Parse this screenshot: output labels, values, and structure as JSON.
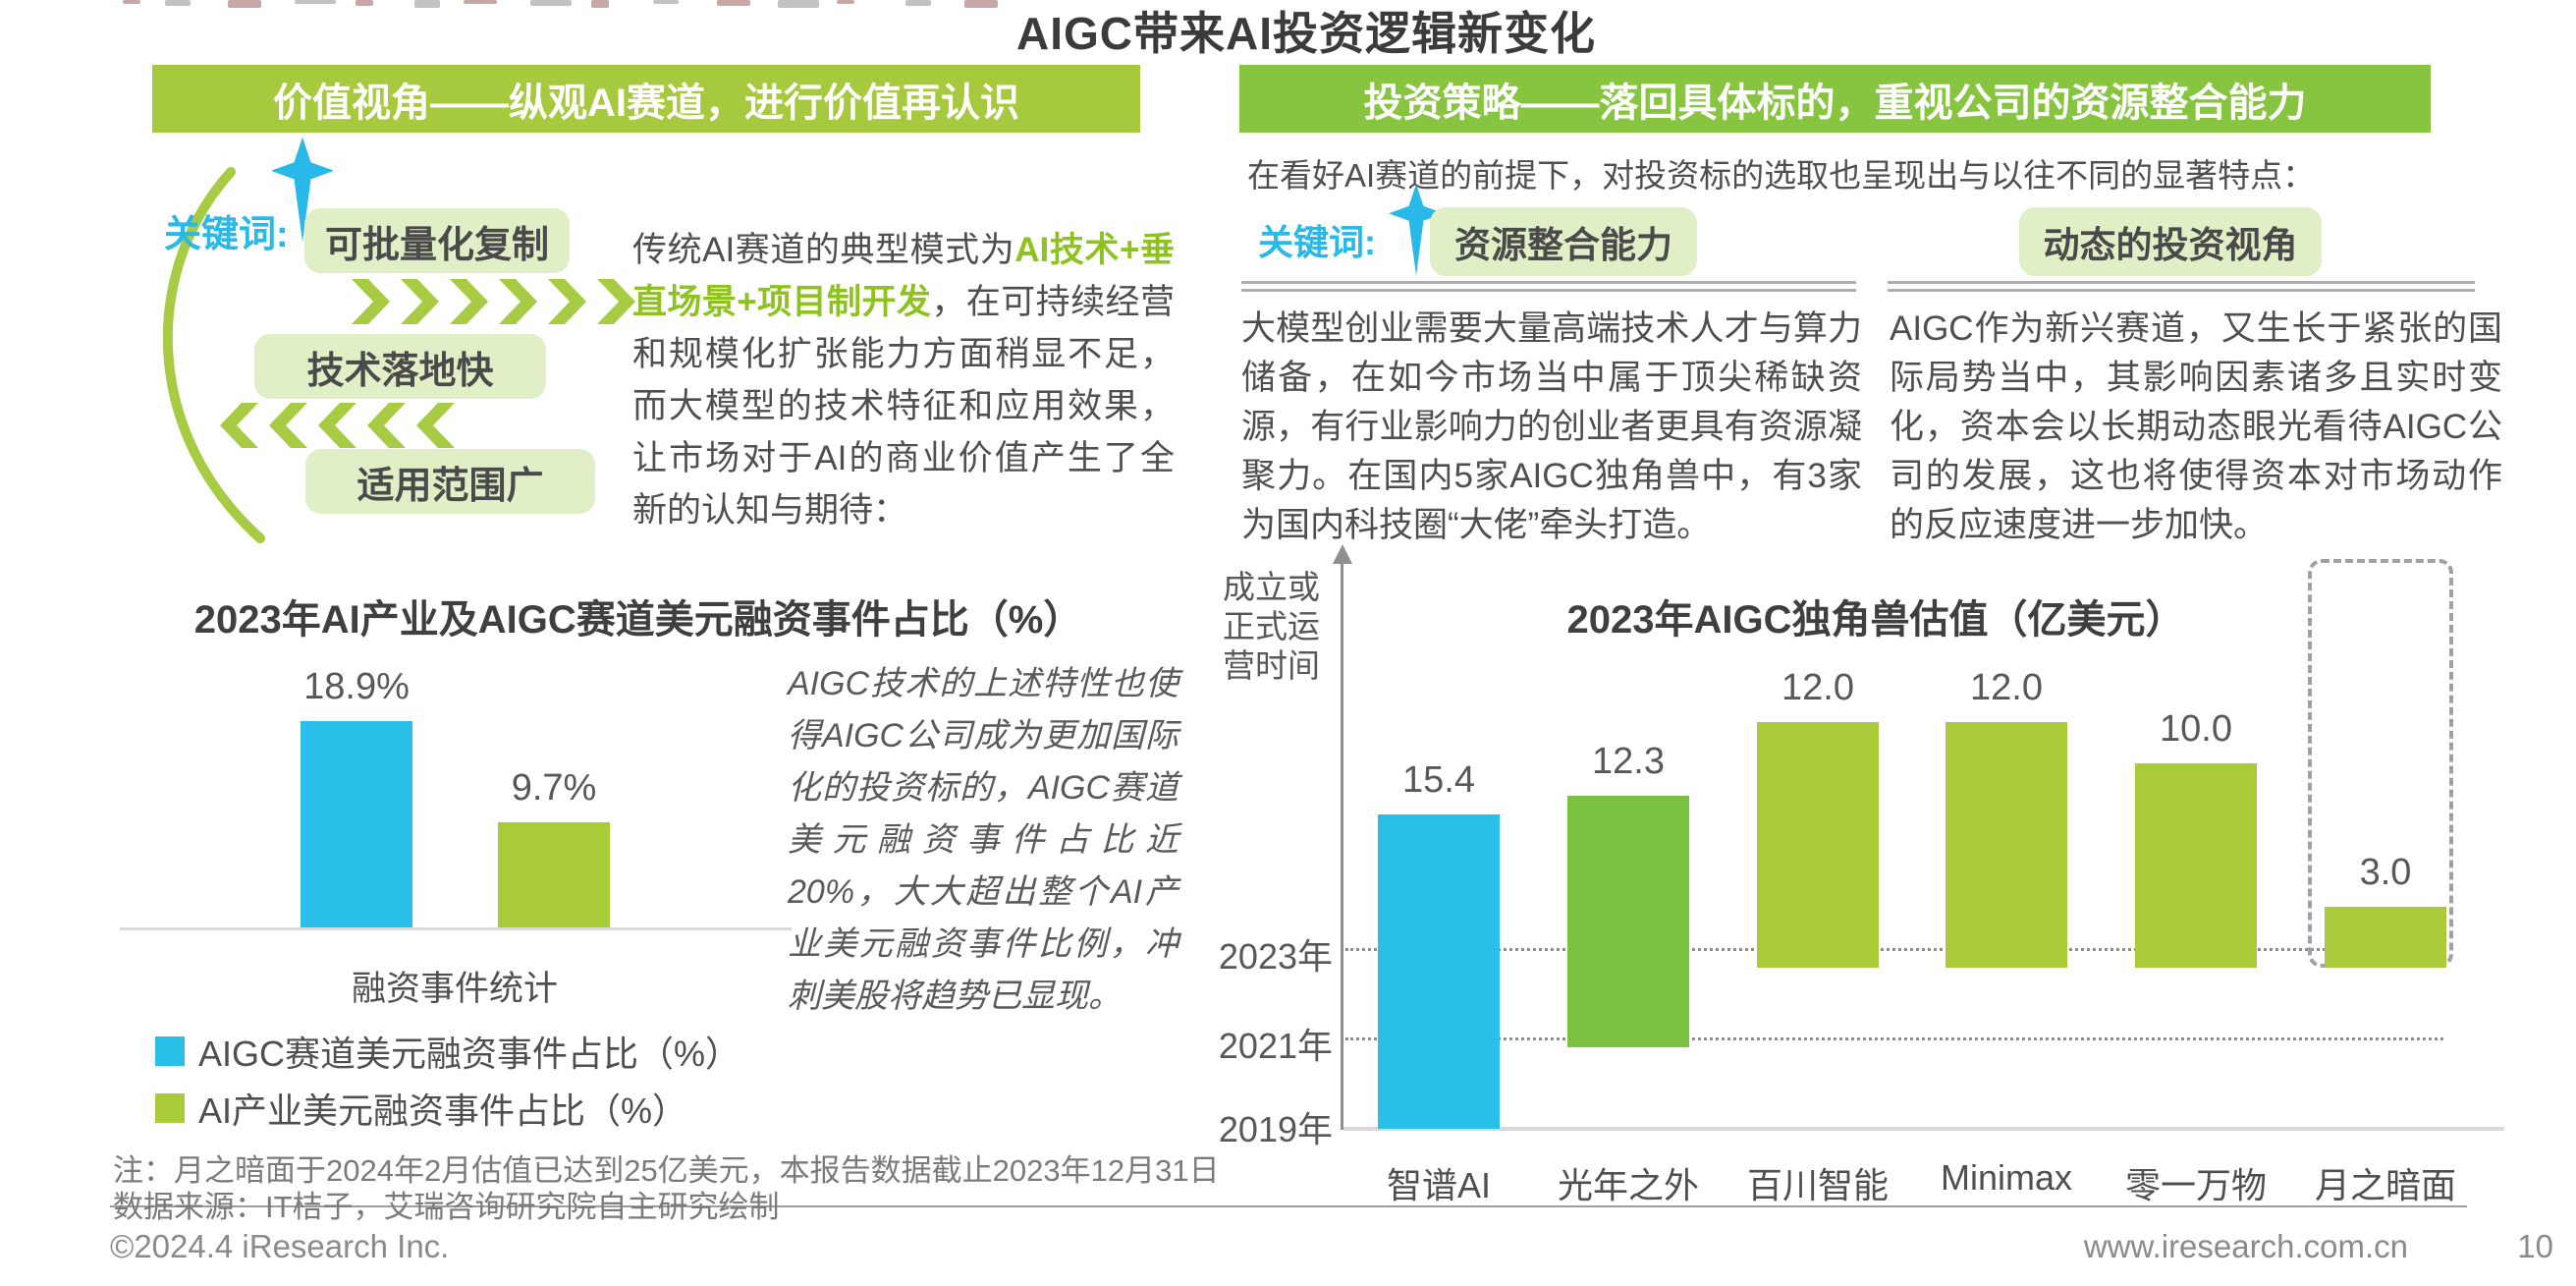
{
  "page": {
    "title": "AIGC带来AI投资逻辑新变化"
  },
  "left_panel": {
    "header": "价值视角——纵观AI赛道，进行价值再认识",
    "keyword_label": "关键词:",
    "keywords": [
      "可批量化复制",
      "技术落地快",
      "适用范围广"
    ],
    "paragraph": {
      "pre": "传统AI赛道的典型模式为",
      "highlight": "AI技术+垂直场景+项目制开发",
      "post": "，在可持续经营和规模化扩张能力方面稍显不足，而大模型的技术特征和应用效果，让市场对于AI的商业价值产生了全新的认知与期待："
    },
    "italic_note": "AIGC技术的上述特性也使得AIGC公司成为更加国际化的投资标的，AIGC赛道美元融资事件占比近20%，大大超出整个AI产业美元融资事件比例，冲刺美股将趋势已显现。"
  },
  "right_panel": {
    "header": "投资策略——落回具体标的，重视公司的资源整合能力",
    "intro": "在看好AI赛道的前提下，对投资标的选取也呈现出与以往不同的显著特点：",
    "keyword_label": "关键词:",
    "keywords": [
      "资源整合能力",
      "动态的投资视角"
    ],
    "paragraphs": [
      "大模型创业需要大量高端技术人才与算力储备，在如今市场当中属于顶尖稀缺资源，有行业影响力的创业者更具有资源凝聚力。在国内5家AIGC独角兽中，有3家为国内科技圈“大佬”牵头打造。",
      "AIGC作为新兴赛道，又生长于紧张的国际局势当中，其影响因素诸多且实时变化，资本会以长期动态眼光看待AIGC公司的发展，这也将使得资本对市场动作的反应速度进一步加快。"
    ]
  },
  "chart_data": [
    {
      "type": "bar",
      "title": "2023年AI产业及AIGC赛道美元融资事件占比（%）",
      "categories": [
        "AIGC赛道美元融资事件占比（%）",
        "AI产业美元融资事件占比（%）"
      ],
      "values": [
        18.9,
        9.7
      ],
      "value_labels": [
        "18.9%",
        "9.7%"
      ],
      "colors": [
        "#29bfe9",
        "#a9cb3a"
      ],
      "xlabel": "融资事件统计",
      "ylim": [
        0,
        20
      ],
      "grid": false,
      "legend_position": "bottom",
      "legend": [
        {
          "label": "AIGC赛道美元融资事件占比（%）",
          "color": "#29bfe9"
        },
        {
          "label": "AI产业美元融资事件占比（%）",
          "color": "#a9cb3a"
        }
      ]
    },
    {
      "type": "bar",
      "title": "2023年AIGC独角兽估值（亿美元）",
      "ylabel": "成立或\n正式运\n营时间",
      "year_ticks": [
        "2023年",
        "2021年",
        "2019年"
      ],
      "categories": [
        "智谱AI",
        "光年之外",
        "百川智能",
        "Minimax",
        "零一万物",
        "月之暗面"
      ],
      "values": [
        15.4,
        12.3,
        12.0,
        12.0,
        10.0,
        3.0
      ],
      "value_labels": [
        "15.4",
        "12.3",
        "12.0",
        "12.0",
        "10.0",
        "3.0"
      ],
      "founded_ticks": [
        "2019年",
        "2021年",
        "2023年",
        "2023年",
        "2023年",
        "2023年"
      ],
      "colors": [
        "#29bfe9",
        "#7cc242",
        "#a9cb3a",
        "#a9cb3a",
        "#a9cb3a",
        "#a9cb3a"
      ],
      "highlighted_category": "月之暗面",
      "grid": "dashed horizontal lines at 2023年 and 2021年, solid baseline at 2019年"
    }
  ],
  "footer": {
    "note1": "注：月之暗面于2024年2月估值已达到25亿美元，本报告数据截止2023年12月31日",
    "note2": "数据来源：IT桔子，艾瑞咨询研究院自主研究绘制",
    "copyright": "©2024.4 iResearch Inc.",
    "website": "www.iresearch.com.cn",
    "page_number": "10"
  },
  "colors": {
    "accent_cyan": "#29bfe9",
    "header_left_green": "#a6c93d",
    "header_right_green": "#87c440",
    "bar_yellow_green": "#a9cb3a",
    "bar_mid_green": "#7cc242",
    "keyword_box_green": "#e0efc6",
    "highlight_text_green": "#8ec31f",
    "text_dark": "#4f4f4f",
    "text_gray": "#7a7a7a"
  }
}
